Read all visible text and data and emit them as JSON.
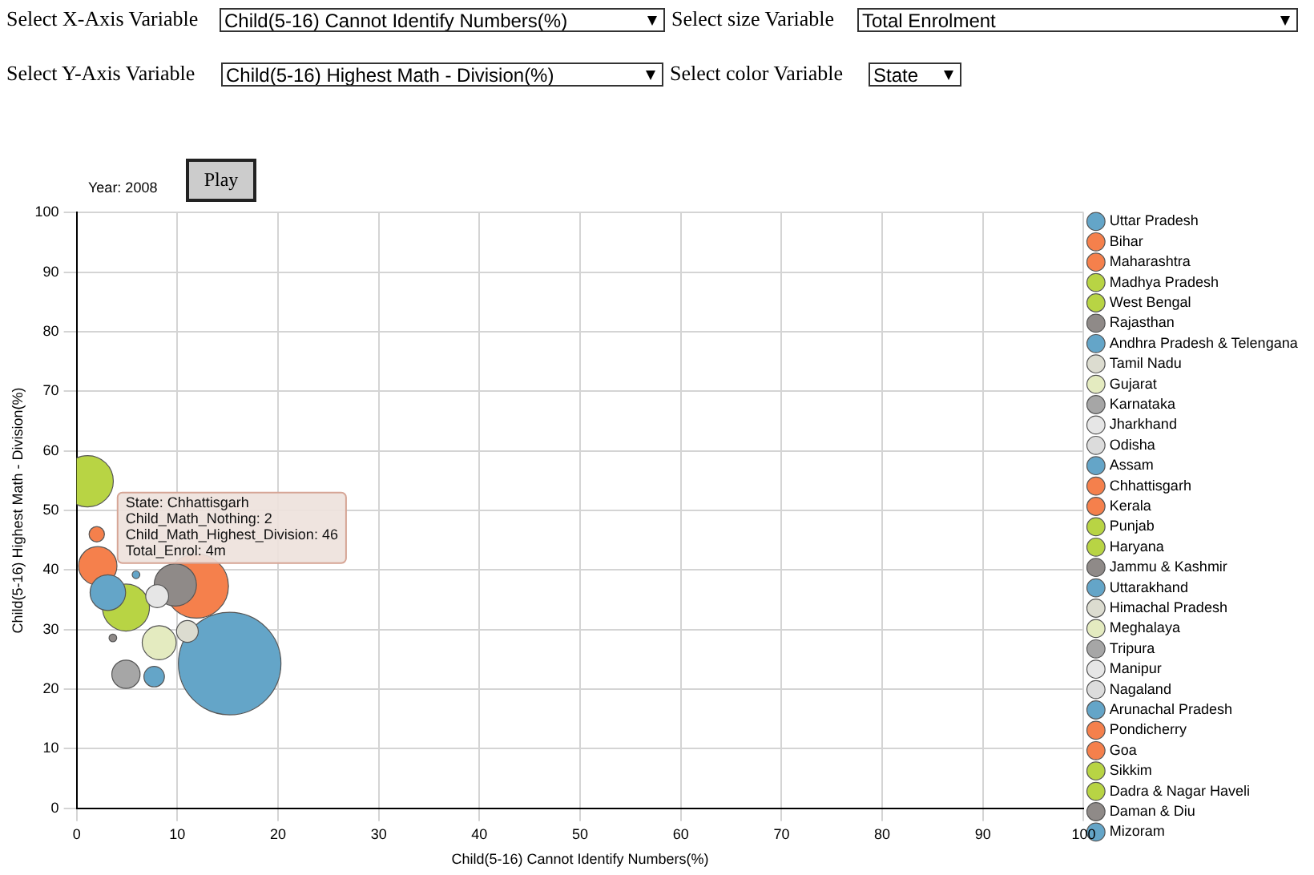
{
  "chart_data": {
    "type": "bubble",
    "xlabel": "Child(5-16) Cannot Identify Numbers(%)",
    "ylabel": "Child(5-16) Highest Math - Division(%)",
    "xlim": [
      0,
      100
    ],
    "xticks": [
      0,
      10,
      20,
      30,
      40,
      50,
      60,
      70,
      80,
      90,
      100
    ],
    "ylim": [
      0,
      100
    ],
    "yticks": [
      0,
      10,
      20,
      30,
      40,
      50,
      60,
      70,
      80,
      90,
      100
    ],
    "grid": true,
    "legend": "right",
    "annotations": [
      "Select X-Axis Variable",
      "Child(5-16) Cannot Identify Numbers(%)",
      "Select size Variable",
      "Total Enrolment",
      "Select Y-Axis Variable",
      "Child(5-16) Highest Math - Division(%)",
      "Select color Variable",
      "State",
      "Year: 2008",
      "Play",
      {
        "text": "State: Chhattisgarh\nChild_Math_Nothing: 2\nChild_Math_Highest_Division: 46\nTotal_Enrol: 4m",
        "x": 2,
        "y": 46
      }
    ],
    "series": [
      {
        "name": "Uttar Pradesh",
        "color": "#64a5c8",
        "x": [
          15.2
        ],
        "values": [
          24.3
        ],
        "sizes": [
          1
        ]
      },
      {
        "name": "Bihar",
        "color": "#f5804c",
        "x": [
          11.9
        ],
        "values": [
          37.3
        ],
        "sizes": [
          0.39
        ]
      },
      {
        "name": "Maharashtra",
        "color": "#f5804c",
        "x": [
          2.1
        ],
        "values": [
          40.7
        ],
        "sizes": [
          0.14
        ]
      },
      {
        "name": "Madhya Pradesh",
        "color": "#b8d444",
        "x": [
          4.9
        ],
        "values": [
          33.7
        ],
        "sizes": [
          0.21
        ]
      },
      {
        "name": "West Bengal",
        "color": "#b8d444",
        "x": [
          1.1
        ],
        "values": [
          54.9
        ],
        "sizes": [
          0.25
        ]
      },
      {
        "name": "Rajasthan",
        "color": "#8f8a88",
        "x": [
          9.8
        ],
        "values": [
          37.5
        ],
        "sizes": [
          0.17
        ]
      },
      {
        "name": "Andhra Pradesh & Telengana",
        "color": "#64a5c8",
        "x": [
          3.1
        ],
        "values": [
          36.2
        ],
        "sizes": [
          0.12
        ]
      },
      {
        "name": "Tamil Nadu",
        "color": "#dcdcd0",
        "x": [
          11
        ],
        "values": [
          29.7
        ],
        "sizes": [
          0.045
        ]
      },
      {
        "name": "Gujarat",
        "color": "#e4ebc0",
        "x": [
          8.2
        ],
        "values": [
          27.8
        ],
        "sizes": [
          0.11
        ]
      },
      {
        "name": "Karnataka",
        "color": "#a6a6a6",
        "x": [
          4.9
        ],
        "values": [
          22.5
        ],
        "sizes": [
          0.076
        ]
      },
      {
        "name": "Jharkhand",
        "color": "#e6e6e6",
        "x": [
          8
        ],
        "values": [
          35.6
        ],
        "sizes": [
          0.05
        ]
      },
      {
        "name": "Odisha",
        "color": "#dcdcdc",
        "x": [
          null
        ],
        "values": [
          null
        ],
        "sizes": [
          null
        ]
      },
      {
        "name": "Assam",
        "color": "#64a5c8",
        "x": [
          7.7
        ],
        "values": [
          22.1
        ],
        "sizes": [
          0.04
        ]
      },
      {
        "name": "Chhattisgarh",
        "color": "#f5804c",
        "x": [
          2
        ],
        "values": [
          46
        ],
        "sizes": [
          0.0225
        ]
      },
      {
        "name": "Kerala",
        "color": "#f5804c",
        "x": [
          null
        ],
        "values": [
          null
        ],
        "sizes": [
          null
        ]
      },
      {
        "name": "Punjab",
        "color": "#b8d444",
        "x": [
          null
        ],
        "values": [
          null
        ],
        "sizes": [
          null
        ]
      },
      {
        "name": "Haryana",
        "color": "#b8d444",
        "x": [
          null
        ],
        "values": [
          null
        ],
        "sizes": [
          null
        ]
      },
      {
        "name": "Jammu & Kashmir",
        "color": "#8f8a88",
        "x": [
          3.6
        ],
        "values": [
          28.6
        ],
        "sizes": [
          0.0056
        ]
      },
      {
        "name": "Uttarakhand",
        "color": "#64a5c8",
        "x": [
          5.9
        ],
        "values": [
          39.2
        ],
        "sizes": [
          0.0056
        ]
      },
      {
        "name": "Himachal Pradesh",
        "color": "#dcdcd0",
        "x": [
          null
        ],
        "values": [
          null
        ],
        "sizes": [
          null
        ]
      },
      {
        "name": "Meghalaya",
        "color": "#e4ebc0",
        "x": [
          null
        ],
        "values": [
          null
        ],
        "sizes": [
          null
        ]
      },
      {
        "name": "Tripura",
        "color": "#a6a6a6",
        "x": [
          null
        ],
        "values": [
          null
        ],
        "sizes": [
          null
        ]
      },
      {
        "name": "Manipur",
        "color": "#e6e6e6",
        "x": [
          null
        ],
        "values": [
          null
        ],
        "sizes": [
          null
        ]
      },
      {
        "name": "Nagaland",
        "color": "#dcdcdc",
        "x": [
          null
        ],
        "values": [
          null
        ],
        "sizes": [
          null
        ]
      },
      {
        "name": "Arunachal Pradesh",
        "color": "#64a5c8",
        "x": [
          null
        ],
        "values": [
          null
        ],
        "sizes": [
          null
        ]
      },
      {
        "name": "Pondicherry",
        "color": "#f5804c",
        "x": [
          null
        ],
        "values": [
          null
        ],
        "sizes": [
          null
        ]
      },
      {
        "name": "Goa",
        "color": "#f5804c",
        "x": [
          null
        ],
        "values": [
          null
        ],
        "sizes": [
          null
        ]
      },
      {
        "name": "Sikkim",
        "color": "#b8d444",
        "x": [
          null
        ],
        "values": [
          null
        ],
        "sizes": [
          null
        ]
      },
      {
        "name": "Dadra & Nagar Haveli",
        "color": "#b8d444",
        "x": [
          null
        ],
        "values": [
          null
        ],
        "sizes": [
          null
        ]
      },
      {
        "name": "Daman & Diu",
        "color": "#8f8a88",
        "x": [
          null
        ],
        "values": [
          null
        ],
        "sizes": [
          null
        ]
      },
      {
        "name": "Mizoram",
        "color": "#64a5c8",
        "x": [
          null
        ],
        "values": [
          null
        ],
        "sizes": [
          null
        ]
      }
    ]
  }
}
